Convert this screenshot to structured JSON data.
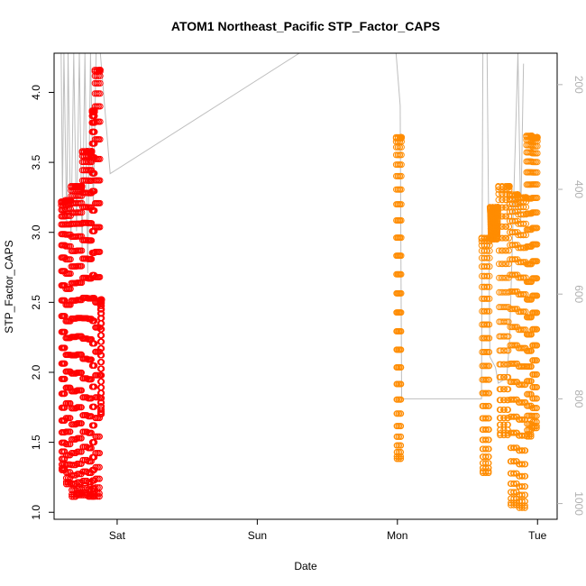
{
  "chart_data": {
    "type": "scatter",
    "title": "ATOM1 Northeast_Pacific STP_Factor_CAPS",
    "xlabel": "Date",
    "ylabel": "STP_Factor_CAPS",
    "x_ticks": [
      "Sat",
      "Sun",
      "Mon",
      "Tue"
    ],
    "xlim_days": [
      -0.45,
      3.14
    ],
    "ylim": [
      0.95,
      4.28
    ],
    "y_ticks": [
      1.0,
      1.5,
      2.0,
      2.5,
      3.0,
      3.5,
      4.0
    ],
    "y2_ticks": [
      200,
      400,
      600,
      800,
      1000
    ],
    "y2lim": [
      1030,
      140
    ],
    "grid": false,
    "colors": {
      "series1": "#ff0000",
      "series2": "#ff8c00",
      "altitude": "#bebebe",
      "axis": "#000000",
      "y2_axis": "#b0b0b0"
    },
    "series": [
      {
        "color": "#ff0000",
        "segments": [
          {
            "x0": -0.4,
            "x1": -0.37,
            "lo": 1.3,
            "hi": 3.22
          },
          {
            "x0": -0.37,
            "x1": -0.33,
            "lo": 1.2,
            "hi": 3.23
          },
          {
            "x0": -0.33,
            "x1": -0.29,
            "lo": 1.11,
            "hi": 3.33
          },
          {
            "x0": -0.29,
            "x1": -0.25,
            "lo": 1.12,
            "hi": 3.33
          },
          {
            "x0": -0.25,
            "x1": -0.21,
            "lo": 1.12,
            "hi": 3.58
          },
          {
            "x0": -0.21,
            "x1": -0.18,
            "lo": 1.11,
            "hi": 3.58
          },
          {
            "x0": -0.18,
            "x1": -0.16,
            "lo": 1.11,
            "hi": 3.87
          },
          {
            "x0": -0.16,
            "x1": -0.12,
            "lo": 1.11,
            "hi": 4.16
          },
          {
            "x0": -0.12,
            "x1": -0.11,
            "lo": 1.7,
            "hi": 2.52
          }
        ]
      },
      {
        "color": "#ff8c00",
        "segments": [
          {
            "x0": 1.99,
            "x1": 2.03,
            "lo": 1.38,
            "hi": 3.68
          },
          {
            "x0": 2.6,
            "x1": 2.66,
            "lo": 1.28,
            "hi": 2.96
          },
          {
            "x0": 2.66,
            "x1": 2.72,
            "lo": 2.95,
            "hi": 3.18
          },
          {
            "x0": 2.72,
            "x1": 2.8,
            "lo": 1.55,
            "hi": 3.33
          },
          {
            "x0": 2.8,
            "x1": 2.86,
            "lo": 1.05,
            "hi": 3.27
          },
          {
            "x0": 2.86,
            "x1": 2.92,
            "lo": 1.03,
            "hi": 3.25
          },
          {
            "x0": 2.92,
            "x1": 2.96,
            "lo": 1.54,
            "hi": 3.69
          },
          {
            "x0": 2.96,
            "x1": 3.0,
            "lo": 1.6,
            "hi": 3.68
          }
        ]
      }
    ],
    "altitude_line": {
      "points": [
        [
          -0.4,
          140
        ],
        [
          -0.39,
          420
        ],
        [
          -0.38,
          140
        ],
        [
          -0.36,
          470
        ],
        [
          -0.35,
          140
        ],
        [
          -0.33,
          500
        ],
        [
          -0.31,
          140
        ],
        [
          -0.29,
          480
        ],
        [
          -0.27,
          140
        ],
        [
          -0.25,
          520
        ],
        [
          -0.23,
          140
        ],
        [
          -0.21,
          560
        ],
        [
          -0.19,
          140
        ],
        [
          -0.17,
          430
        ],
        [
          -0.15,
          140
        ],
        [
          -0.12,
          140
        ],
        [
          -0.05,
          370
        ],
        [
          1.3,
          140
        ],
        [
          1.99,
          140
        ],
        [
          2.02,
          240
        ],
        [
          2.03,
          800
        ],
        [
          2.6,
          800
        ],
        [
          2.61,
          140
        ],
        [
          2.64,
          140
        ],
        [
          2.66,
          720
        ],
        [
          2.7,
          740
        ],
        [
          2.72,
          770
        ],
        [
          2.78,
          760
        ],
        [
          2.8,
          690
        ],
        [
          2.86,
          140
        ],
        [
          2.88,
          460
        ],
        [
          2.9,
          160
        ]
      ]
    }
  }
}
